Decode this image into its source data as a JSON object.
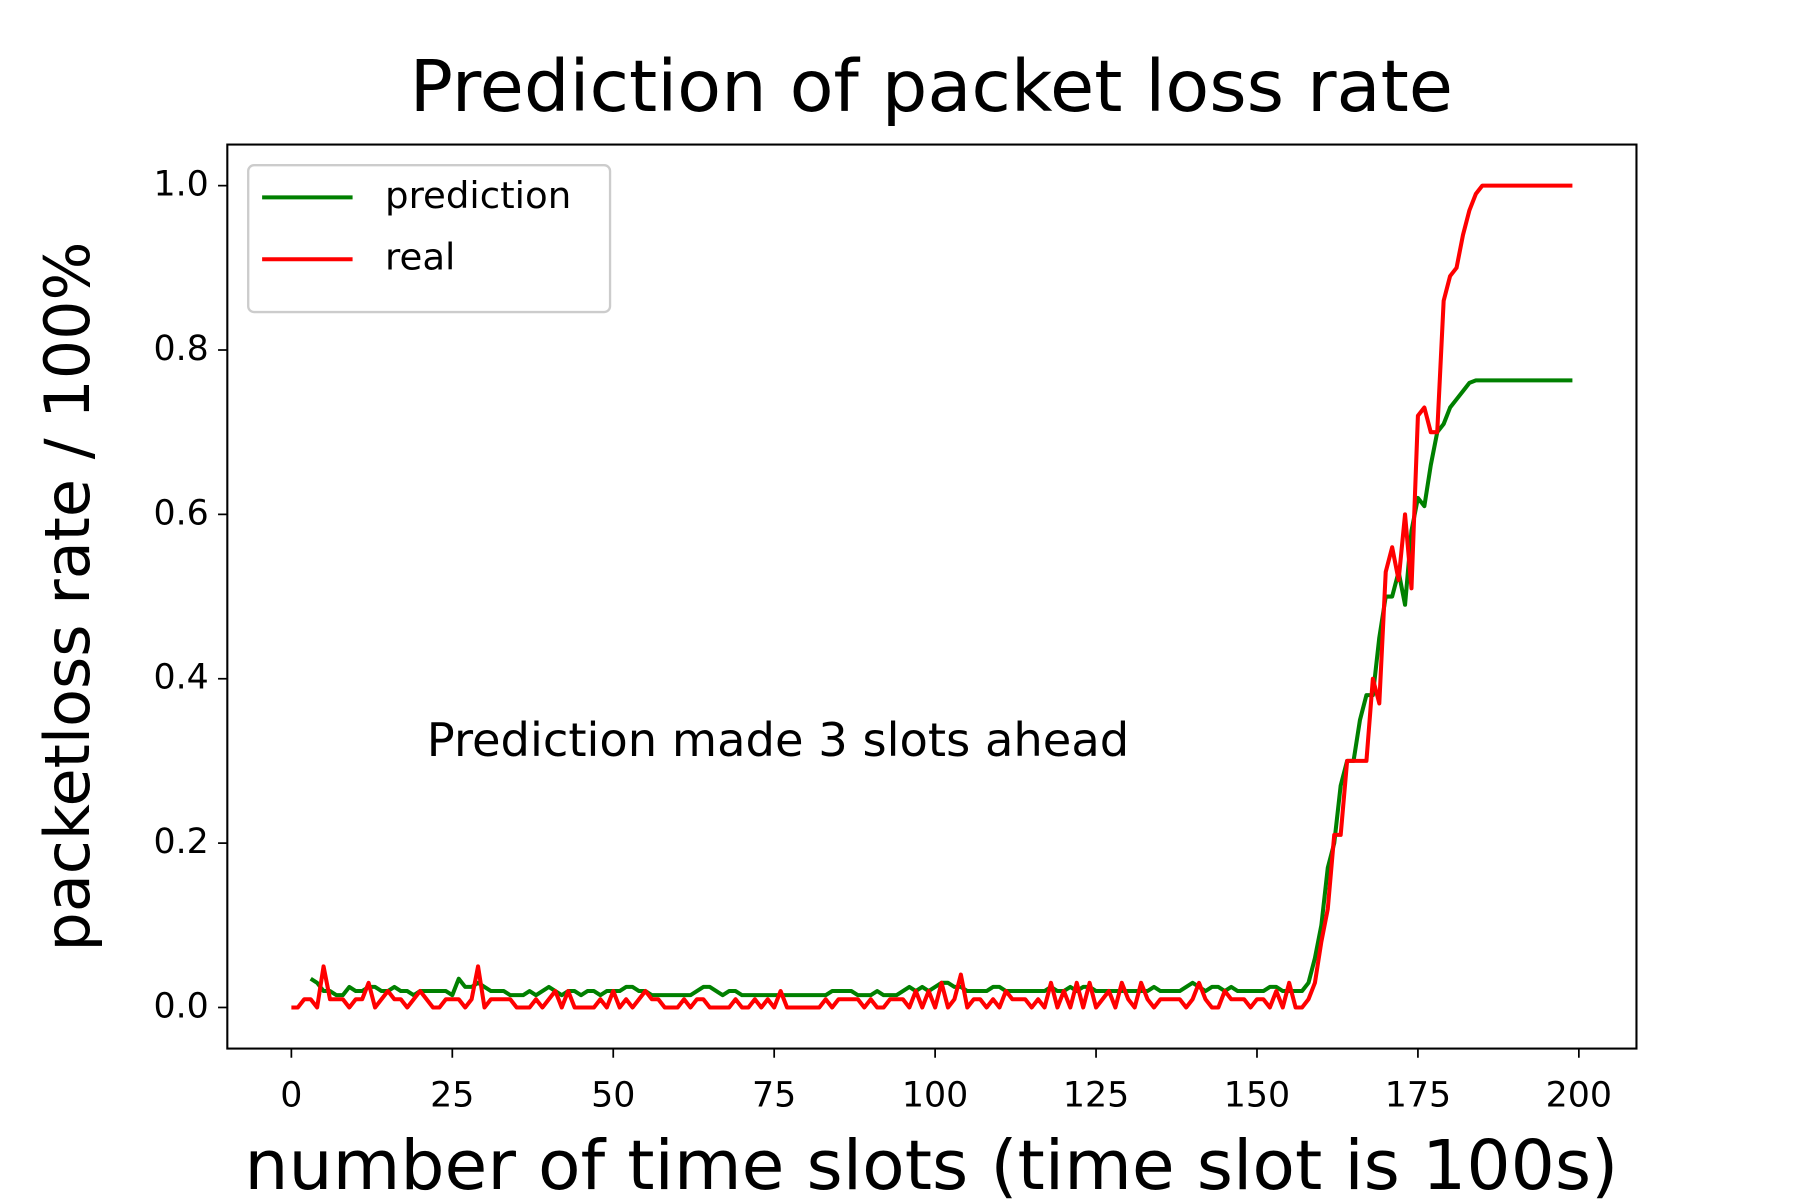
{
  "chart_data": {
    "type": "line",
    "title": "Prediction of packet loss rate",
    "x_label": "number of time slots (time slot is 100s)",
    "y_label": "packetloss rate / 100%",
    "annotation": "Prediction made 3 slots ahead",
    "legend": "upper left",
    "grid": false,
    "xlim": [
      -9.95,
      208.95
    ],
    "ylim": [
      -0.05,
      1.05
    ],
    "xticks": [
      0,
      25,
      50,
      75,
      100,
      125,
      150,
      175,
      200
    ],
    "yticks": [
      {
        "value": 0,
        "label": "0.0"
      },
      0.2,
      0.4,
      0.6,
      0.8,
      {
        "value": 1,
        "label": "1.0"
      }
    ],
    "x": [
      0,
      1,
      2,
      3,
      4,
      5,
      6,
      7,
      8,
      9,
      10,
      11,
      12,
      13,
      14,
      15,
      16,
      17,
      18,
      19,
      20,
      21,
      22,
      23,
      24,
      25,
      26,
      27,
      28,
      29,
      30,
      31,
      32,
      33,
      34,
      35,
      36,
      37,
      38,
      39,
      40,
      41,
      42,
      43,
      44,
      45,
      46,
      47,
      48,
      49,
      50,
      51,
      52,
      53,
      54,
      55,
      56,
      57,
      58,
      59,
      60,
      61,
      62,
      63,
      64,
      65,
      66,
      67,
      68,
      69,
      70,
      71,
      72,
      73,
      74,
      75,
      76,
      77,
      78,
      79,
      80,
      81,
      82,
      83,
      84,
      85,
      86,
      87,
      88,
      89,
      90,
      91,
      92,
      93,
      94,
      95,
      96,
      97,
      98,
      99,
      100,
      101,
      102,
      103,
      104,
      105,
      106,
      107,
      108,
      109,
      110,
      111,
      112,
      113,
      114,
      115,
      116,
      117,
      118,
      119,
      120,
      121,
      122,
      123,
      124,
      125,
      126,
      127,
      128,
      129,
      130,
      131,
      132,
      133,
      134,
      135,
      136,
      137,
      138,
      139,
      140,
      141,
      142,
      143,
      144,
      145,
      146,
      147,
      148,
      149,
      150,
      151,
      152,
      153,
      154,
      155,
      156,
      157,
      158,
      159,
      160,
      161,
      162,
      163,
      164,
      165,
      166,
      167,
      168,
      169,
      170,
      171,
      172,
      173,
      174,
      175,
      176,
      177,
      178,
      179,
      180,
      181,
      182,
      183,
      184,
      185,
      186,
      187,
      188,
      189,
      190,
      191,
      192,
      193,
      194,
      195,
      196,
      197,
      198,
      199
    ],
    "series": [
      {
        "name": "prediction",
        "color": "#008000",
        "values": [
          null,
          null,
          null,
          0.035,
          0.03,
          0.02,
          0.02,
          0.015,
          0.015,
          0.025,
          0.02,
          0.02,
          0.025,
          0.025,
          0.02,
          0.02,
          0.025,
          0.02,
          0.02,
          0.015,
          0.02,
          0.02,
          0.02,
          0.02,
          0.02,
          0.015,
          0.035,
          0.025,
          0.025,
          0.03,
          0.025,
          0.02,
          0.02,
          0.02,
          0.015,
          0.015,
          0.015,
          0.02,
          0.015,
          0.02,
          0.025,
          0.02,
          0.015,
          0.02,
          0.02,
          0.015,
          0.02,
          0.02,
          0.015,
          0.02,
          0.02,
          0.02,
          0.025,
          0.025,
          0.02,
          0.02,
          0.015,
          0.015,
          0.015,
          0.015,
          0.015,
          0.015,
          0.015,
          0.02,
          0.025,
          0.025,
          0.02,
          0.015,
          0.02,
          0.02,
          0.015,
          0.015,
          0.015,
          0.015,
          0.015,
          0.015,
          0.015,
          0.015,
          0.015,
          0.015,
          0.015,
          0.015,
          0.015,
          0.015,
          0.02,
          0.02,
          0.02,
          0.02,
          0.015,
          0.015,
          0.015,
          0.02,
          0.015,
          0.015,
          0.015,
          0.02,
          0.025,
          0.02,
          0.025,
          0.02,
          0.025,
          0.03,
          0.03,
          0.025,
          0.025,
          0.02,
          0.02,
          0.02,
          0.02,
          0.025,
          0.025,
          0.02,
          0.02,
          0.02,
          0.02,
          0.02,
          0.02,
          0.02,
          0.025,
          0.02,
          0.02,
          0.025,
          0.02,
          0.025,
          0.025,
          0.02,
          0.02,
          0.02,
          0.02,
          0.02,
          0.02,
          0.02,
          0.02,
          0.02,
          0.025,
          0.02,
          0.02,
          0.02,
          0.02,
          0.025,
          0.03,
          0.025,
          0.02,
          0.025,
          0.025,
          0.02,
          0.025,
          0.02,
          0.02,
          0.02,
          0.02,
          0.02,
          0.025,
          0.025,
          0.02,
          0.02,
          0.02,
          0.02,
          0.03,
          0.06,
          0.1,
          0.17,
          0.2,
          0.27,
          0.3,
          0.3,
          0.35,
          0.38,
          0.38,
          0.45,
          0.5,
          0.5,
          0.53,
          0.49,
          0.58,
          0.62,
          0.61,
          0.66,
          0.7,
          0.71,
          0.73,
          0.74,
          0.75,
          0.76,
          0.763,
          0.763,
          0.763,
          0.763,
          0.763,
          0.763,
          0.763,
          0.763,
          0.763,
          0.763,
          0.763,
          0.763,
          0.763,
          0.763,
          0.763,
          0.763
        ]
      },
      {
        "name": "real",
        "color": "#ff0000",
        "values": [
          0,
          0,
          0.01,
          0.01,
          0,
          0.05,
          0.01,
          0.01,
          0.01,
          0,
          0.01,
          0.01,
          0.03,
          0,
          0.01,
          0.02,
          0.01,
          0.01,
          0,
          0.01,
          0.02,
          0.01,
          0,
          0,
          0.01,
          0.01,
          0.01,
          0,
          0.01,
          0.05,
          0,
          0.01,
          0.01,
          0.01,
          0.01,
          0,
          0,
          0,
          0.01,
          0,
          0.01,
          0.02,
          0,
          0.02,
          0,
          0,
          0,
          0,
          0.01,
          0,
          0.02,
          0,
          0.01,
          0,
          0.01,
          0.02,
          0.01,
          0.01,
          0,
          0,
          0,
          0.01,
          0,
          0.01,
          0.01,
          0,
          0,
          0,
          0,
          0.01,
          0,
          0,
          0.01,
          0,
          0.01,
          0,
          0.02,
          0,
          0,
          0,
          0,
          0,
          0,
          0.01,
          0,
          0.01,
          0.01,
          0.01,
          0.01,
          0,
          0.01,
          0,
          0,
          0.01,
          0.01,
          0.01,
          0,
          0.02,
          0,
          0.02,
          0,
          0.03,
          0,
          0.01,
          0.04,
          0,
          0.01,
          0.01,
          0,
          0.01,
          0,
          0.02,
          0.01,
          0.01,
          0.01,
          0,
          0.01,
          0,
          0.03,
          0,
          0.02,
          0,
          0.03,
          0,
          0.03,
          0,
          0.01,
          0.02,
          0,
          0.03,
          0.01,
          0,
          0.03,
          0.01,
          0,
          0.01,
          0.01,
          0.01,
          0.01,
          0,
          0.01,
          0.03,
          0.01,
          0,
          0,
          0.02,
          0.01,
          0.01,
          0.01,
          0,
          0.01,
          0.01,
          0,
          0.02,
          0,
          0.03,
          0,
          0,
          0.01,
          0.03,
          0.08,
          0.12,
          0.21,
          0.21,
          0.3,
          0.3,
          0.3,
          0.3,
          0.4,
          0.37,
          0.53,
          0.56,
          0.52,
          0.6,
          0.51,
          0.72,
          0.73,
          0.7,
          0.7,
          0.86,
          0.89,
          0.9,
          0.94,
          0.97,
          0.99,
          1,
          1,
          1,
          1,
          1,
          1,
          1,
          1,
          1,
          1,
          1,
          1,
          1,
          1,
          1
        ]
      }
    ]
  }
}
